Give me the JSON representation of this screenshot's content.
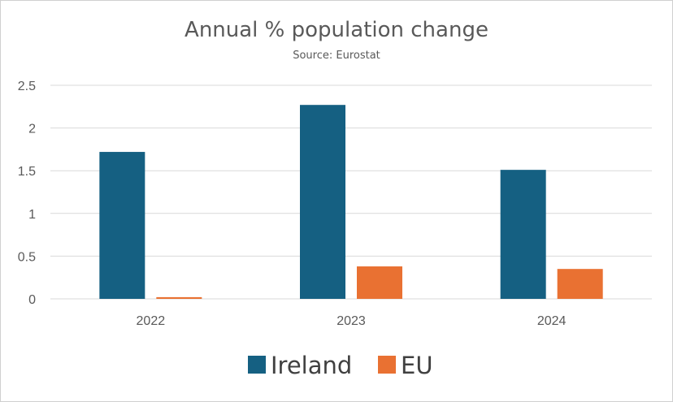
{
  "chart_data": {
    "type": "bar",
    "title": "Annual % population change",
    "subtitle": "Source: Eurostat",
    "categories": [
      "2022",
      "2023",
      "2024"
    ],
    "series": [
      {
        "name": "Ireland",
        "values": [
          1.72,
          2.27,
          1.51
        ],
        "color": "#156082"
      },
      {
        "name": "EU",
        "values": [
          0.02,
          0.38,
          0.35
        ],
        "color": "#E97132"
      }
    ],
    "ylim": [
      0,
      2.5
    ],
    "yticks": [
      "0",
      "0.5",
      "1",
      "1.5",
      "2",
      "2.5"
    ],
    "ytick_values": [
      0,
      0.5,
      1,
      1.5,
      2,
      2.5
    ],
    "grid": true,
    "legend_position": "bottom"
  }
}
